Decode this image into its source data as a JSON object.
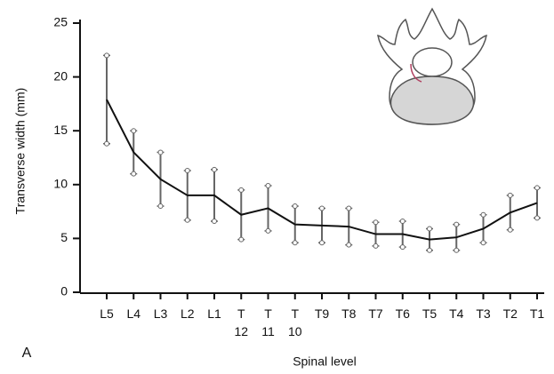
{
  "chart_data": {
    "type": "line",
    "panel_label": "A",
    "xlabel": "Spinal level",
    "ylabel": "Transverse width (mm)",
    "categories": [
      "L5",
      "L4",
      "L3",
      "L2",
      "L1",
      "T\n12",
      "T\n11",
      "T\n10",
      "T9",
      "T8",
      "T7",
      "T6",
      "T5",
      "T4",
      "T3",
      "T2",
      "T1"
    ],
    "values": [
      17.9,
      13,
      10.5,
      9,
      9,
      7.2,
      7.8,
      6.3,
      6.2,
      6.1,
      5.4,
      5.4,
      4.9,
      5.1,
      5.9,
      7.4,
      8.3
    ],
    "errors": [
      4.1,
      2,
      2.5,
      2.3,
      2.4,
      2.3,
      2.1,
      1.7,
      1.6,
      1.7,
      1.1,
      1.2,
      1,
      1.2,
      1.3,
      1.6,
      1.4
    ],
    "color": "#111111",
    "ylim": [
      0,
      25
    ],
    "yticks": [
      0,
      5,
      10,
      15,
      20,
      25
    ]
  }
}
